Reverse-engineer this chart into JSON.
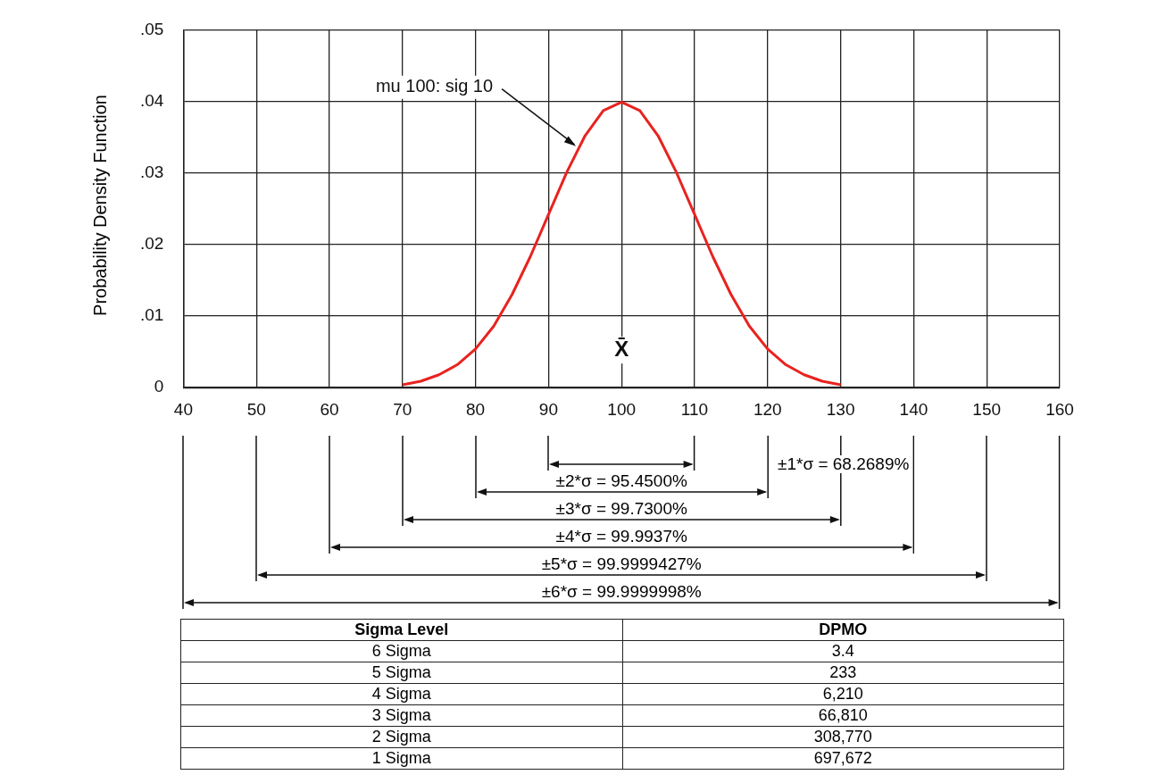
{
  "chart_data": {
    "type": "line",
    "ylabel": "Probability Density Function",
    "x": [
      70,
      72.5,
      75,
      77.5,
      80,
      82.5,
      85,
      87.5,
      90,
      92.5,
      95,
      97.5,
      100,
      102.5,
      105,
      107.5,
      110,
      112.5,
      115,
      117.5,
      120,
      122.5,
      125,
      127.5,
      130
    ],
    "series": [
      {
        "color": "#e8231f",
        "values": [
          0.0004,
          0.0009,
          0.0018,
          0.0032,
          0.0054,
          0.0086,
          0.013,
          0.0183,
          0.0242,
          0.0301,
          0.0352,
          0.0387,
          0.0399,
          0.0387,
          0.0352,
          0.0301,
          0.0242,
          0.0183,
          0.013,
          0.0086,
          0.0054,
          0.0032,
          0.0018,
          0.0009,
          0.0004
        ]
      }
    ],
    "xlim": [
      40,
      160
    ],
    "xticks": [
      40,
      50,
      60,
      70,
      80,
      90,
      100,
      110,
      120,
      130,
      140,
      150,
      160
    ],
    "ylim": [
      0,
      0.05
    ],
    "yticks": [
      0,
      {
        "value": 0.01,
        "label": ".01"
      },
      {
        "value": 0.02,
        "label": ".02"
      },
      {
        "value": 0.03,
        "label": ".03"
      },
      {
        "value": 0.04,
        "label": ".04"
      },
      {
        "value": 0.05,
        "label": ".05"
      }
    ],
    "grid": true,
    "legend": false,
    "marker": "none",
    "line_style": "solid",
    "annotations": [
      {
        "text": "mu 100: sig 10",
        "x": 94,
        "y": 0.0335
      },
      "X̄",
      "±1*σ = 68.2689%",
      "±2*σ = 95.4500%",
      "±3*σ = 99.7300%",
      "±4*σ = 99.9937%",
      "±5*σ = 99.9999427%",
      "±6*σ = 99.9999998%",
      "Sigma Level",
      "DPMO",
      "6 Sigma",
      "3.4",
      "5 Sigma",
      "233",
      "4 Sigma",
      "6,210",
      "3 Sigma",
      "66,810",
      "2 Sigma",
      "308,770",
      "1 Sigma",
      "697,672"
    ]
  }
}
